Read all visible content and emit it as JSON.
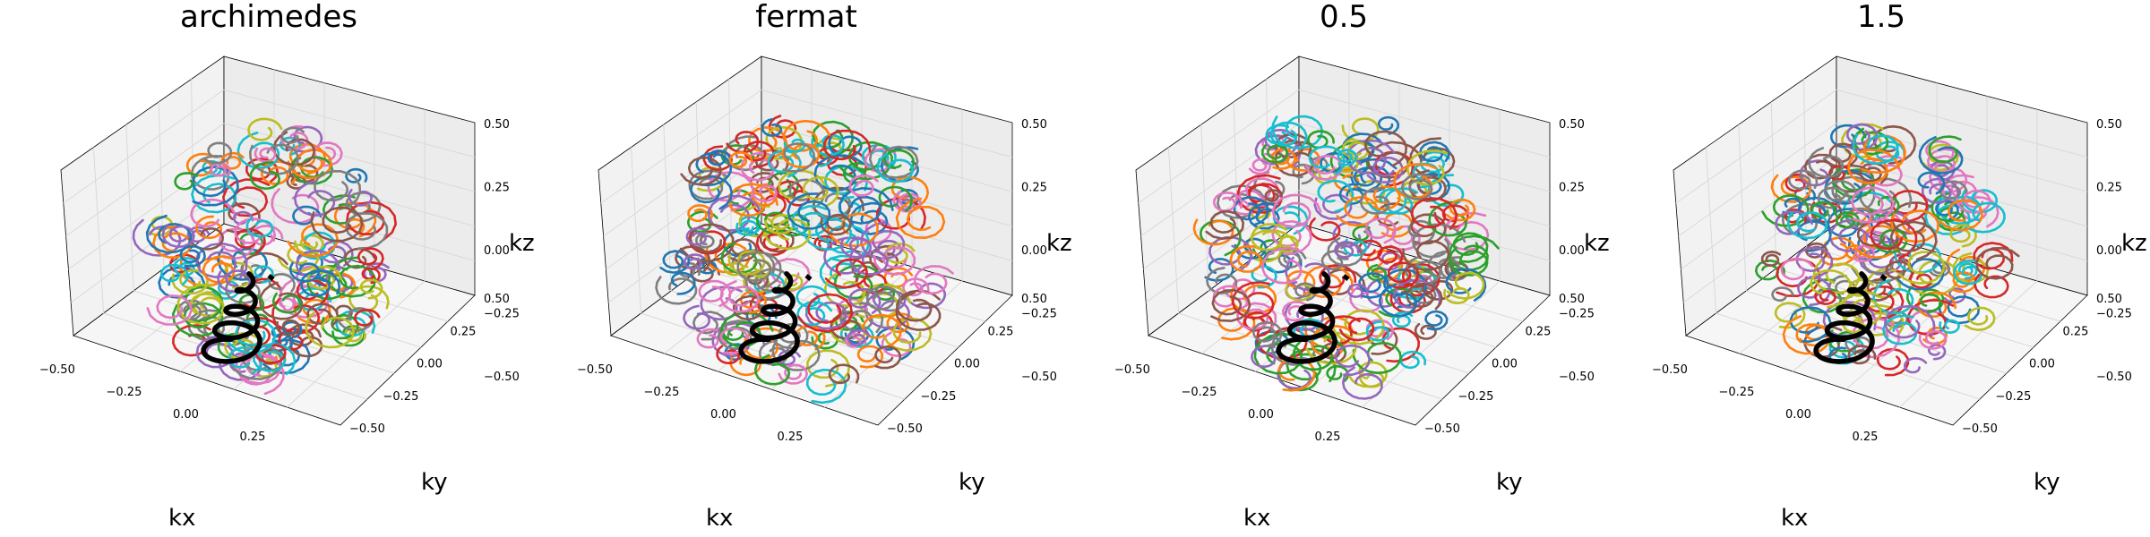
{
  "chart_data": [
    {
      "type": "line3d",
      "title": "archimedes",
      "xlabel": "kx",
      "ylabel": "ky",
      "zlabel": "kz",
      "xlim": [
        -0.5,
        0.5
      ],
      "ylim": [
        -0.5,
        0.5
      ],
      "zlim": [
        -0.5,
        0.5
      ],
      "xticks": [
        "−0.50",
        "−0.25",
        "0.00",
        "0.25"
      ],
      "yticks": [
        "−0.50",
        "−0.25",
        "0.00",
        "0.25",
        "0.50"
      ],
      "zticks": [
        "−0.50",
        "−0.25",
        "0.00",
        "0.25",
        "0.50"
      ],
      "radial_spacing": "archimedes",
      "highlight_color": "#000000",
      "grid": true
    },
    {
      "type": "line3d",
      "title": "fermat",
      "xlabel": "kx",
      "ylabel": "ky",
      "zlabel": "kz",
      "xlim": [
        -0.5,
        0.5
      ],
      "ylim": [
        -0.5,
        0.5
      ],
      "zlim": [
        -0.5,
        0.5
      ],
      "xticks": [
        "−0.50",
        "−0.25",
        "0.00",
        "0.25"
      ],
      "yticks": [
        "−0.50",
        "−0.25",
        "0.00",
        "0.25",
        "0.50"
      ],
      "zticks": [
        "−0.50",
        "−0.25",
        "0.00",
        "0.25",
        "0.50"
      ],
      "radial_spacing": "fermat",
      "highlight_color": "#000000",
      "grid": true
    },
    {
      "type": "line3d",
      "title": "0.5",
      "xlabel": "kx",
      "ylabel": "ky",
      "zlabel": "kz",
      "xlim": [
        -0.5,
        0.5
      ],
      "ylim": [
        -0.5,
        0.5
      ],
      "zlim": [
        -0.5,
        0.5
      ],
      "xticks": [
        "−0.50",
        "−0.25",
        "0.00",
        "0.25"
      ],
      "yticks": [
        "−0.50",
        "−0.25",
        "0.00",
        "0.25",
        "0.50"
      ],
      "zticks": [
        "−0.50",
        "−0.25",
        "0.00",
        "0.25",
        "0.50"
      ],
      "radial_spacing": 0.5,
      "highlight_color": "#000000",
      "grid": true
    },
    {
      "type": "line3d",
      "title": "1.5",
      "xlabel": "kx",
      "ylabel": "ky",
      "zlabel": "kz",
      "xlim": [
        -0.5,
        0.5
      ],
      "ylim": [
        -0.5,
        0.5
      ],
      "zlim": [
        -0.5,
        0.5
      ],
      "xticks": [
        "−0.50",
        "−0.25",
        "0.00",
        "0.25"
      ],
      "yticks": [
        "−0.50",
        "−0.25",
        "0.00",
        "0.25",
        "0.50"
      ],
      "zticks": [
        "−0.50",
        "−0.25",
        "0.00",
        "0.25",
        "0.50"
      ],
      "radial_spacing": 1.5,
      "highlight_color": "#000000",
      "grid": true
    }
  ],
  "palette": [
    "#1f77b4",
    "#ff7f0e",
    "#2ca02c",
    "#d62728",
    "#9467bd",
    "#8c564b",
    "#e377c2",
    "#7f7f7f",
    "#bcbd22",
    "#17becf"
  ]
}
